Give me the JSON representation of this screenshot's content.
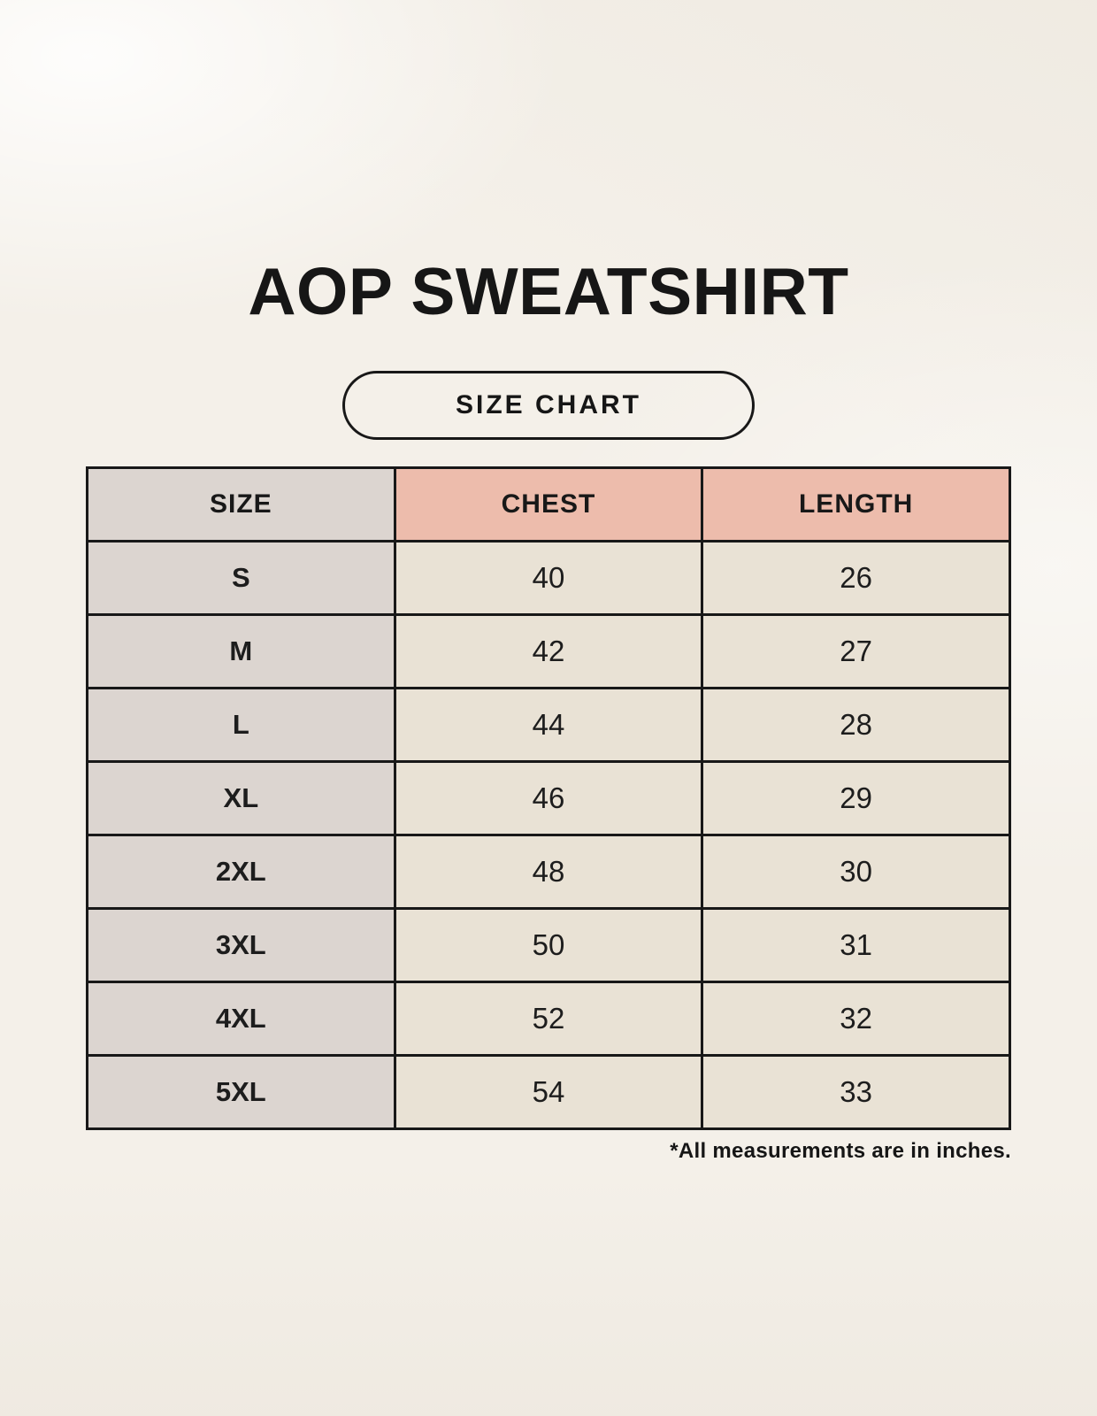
{
  "page": {
    "title": "AOP SWEATSHIRT",
    "badge_label": "SIZE CHART",
    "footnote": "*All measurements are in inches."
  },
  "table": {
    "columns": [
      "SIZE",
      "CHEST",
      "LENGTH"
    ],
    "rows": [
      {
        "size": "S",
        "chest": "40",
        "length": "26"
      },
      {
        "size": "M",
        "chest": "42",
        "length": "27"
      },
      {
        "size": "L",
        "chest": "44",
        "length": "28"
      },
      {
        "size": "XL",
        "chest": "46",
        "length": "29"
      },
      {
        "size": "2XL",
        "chest": "48",
        "length": "30"
      },
      {
        "size": "3XL",
        "chest": "50",
        "length": "31"
      },
      {
        "size": "4XL",
        "chest": "52",
        "length": "32"
      },
      {
        "size": "5XL",
        "chest": "54",
        "length": "33"
      }
    ]
  },
  "chart_data": {
    "type": "table",
    "title": "AOP SWEATSHIRT",
    "subtitle": "SIZE CHART",
    "columns": [
      "SIZE",
      "CHEST",
      "LENGTH"
    ],
    "rows": [
      [
        "S",
        40,
        26
      ],
      [
        "M",
        42,
        27
      ],
      [
        "L",
        44,
        28
      ],
      [
        "XL",
        46,
        29
      ],
      [
        "2XL",
        48,
        30
      ],
      [
        "3XL",
        50,
        31
      ],
      [
        "4XL",
        52,
        32
      ],
      [
        "5XL",
        54,
        33
      ]
    ],
    "units": "inches",
    "note": "*All measurements are in inches."
  },
  "colors": {
    "background": "#f4f0e9",
    "cell_gray": "#dcd5d0",
    "cell_pink": "#edbcac",
    "cell_cream": "#e9e2d5",
    "border": "#181818",
    "text": "#161616"
  }
}
